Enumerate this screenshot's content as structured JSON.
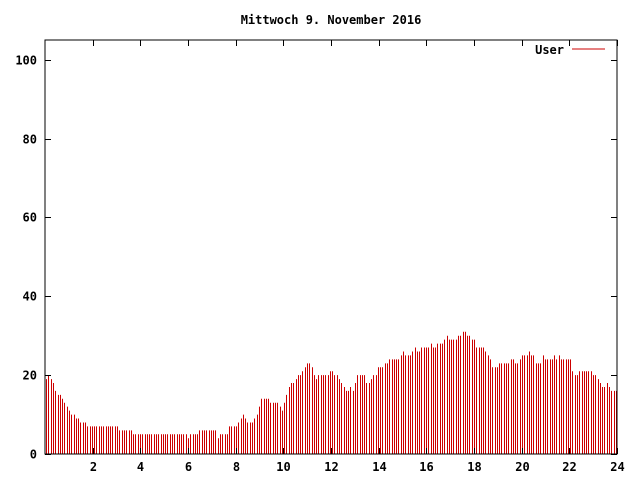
{
  "chart_data": {
    "type": "bar",
    "title": "Mittwoch 9. November 2016",
    "xlabel": "",
    "ylabel": "",
    "xlim": [
      0,
      24
    ],
    "ylim": [
      0,
      105
    ],
    "x_ticks": [
      "2",
      "4",
      "6",
      "8",
      "10",
      "12",
      "14",
      "16",
      "18",
      "20",
      "22",
      "24"
    ],
    "y_ticks": [
      "0",
      "20",
      "40",
      "60",
      "80",
      "100"
    ],
    "grid": false,
    "legend_position": "top-right",
    "series": [
      {
        "name": "User",
        "color": "#cc0000",
        "values": [
          19,
          20,
          19,
          18,
          16,
          15,
          15,
          14,
          13,
          12,
          11,
          10,
          10,
          9,
          9,
          8,
          8,
          8,
          7,
          7,
          7,
          7,
          7,
          7,
          7,
          7,
          7,
          7,
          7,
          7,
          7,
          7,
          6,
          6,
          6,
          6,
          6,
          6,
          5,
          5,
          5,
          5,
          5,
          5,
          5,
          5,
          5,
          5,
          5,
          5,
          5,
          5,
          5,
          5,
          5,
          5,
          5,
          5,
          5,
          5,
          5,
          5,
          4,
          5,
          5,
          5,
          5,
          6,
          6,
          6,
          6,
          6,
          6,
          6,
          6,
          4,
          5,
          5,
          5,
          5,
          7,
          7,
          7,
          7,
          8,
          9,
          10,
          9,
          8,
          8,
          8,
          9,
          10,
          12,
          14,
          14,
          14,
          14,
          13,
          13,
          13,
          13,
          12,
          11,
          13,
          15,
          17,
          18,
          18,
          19,
          20,
          20,
          21,
          22,
          23,
          23,
          22,
          20,
          19,
          20,
          20,
          20,
          20,
          20,
          21,
          21,
          20,
          20,
          19,
          18,
          17,
          16,
          16,
          17,
          16,
          18,
          20,
          20,
          20,
          20,
          18,
          18,
          19,
          20,
          20,
          22,
          22,
          22,
          23,
          23,
          24,
          24,
          24,
          24,
          24,
          25,
          26,
          25,
          25,
          25,
          26,
          27,
          26,
          26,
          27,
          27,
          27,
          27,
          28,
          27,
          27,
          28,
          28,
          28,
          29,
          30,
          29,
          29,
          29,
          29,
          30,
          30,
          31,
          31,
          30,
          30,
          29,
          29,
          27,
          27,
          27,
          27,
          26,
          25,
          24,
          22,
          22,
          22,
          23,
          23,
          23,
          23,
          23,
          24,
          24,
          23,
          23,
          24,
          25,
          25,
          25,
          26,
          25,
          25,
          23,
          23,
          23,
          25,
          24,
          24,
          24,
          24,
          25,
          24,
          25,
          24,
          24,
          24,
          24,
          24,
          21,
          20,
          20,
          21,
          21,
          21,
          21,
          21,
          21,
          20,
          20,
          19,
          18,
          17,
          17,
          18,
          17,
          16,
          16,
          16
        ]
      }
    ]
  }
}
